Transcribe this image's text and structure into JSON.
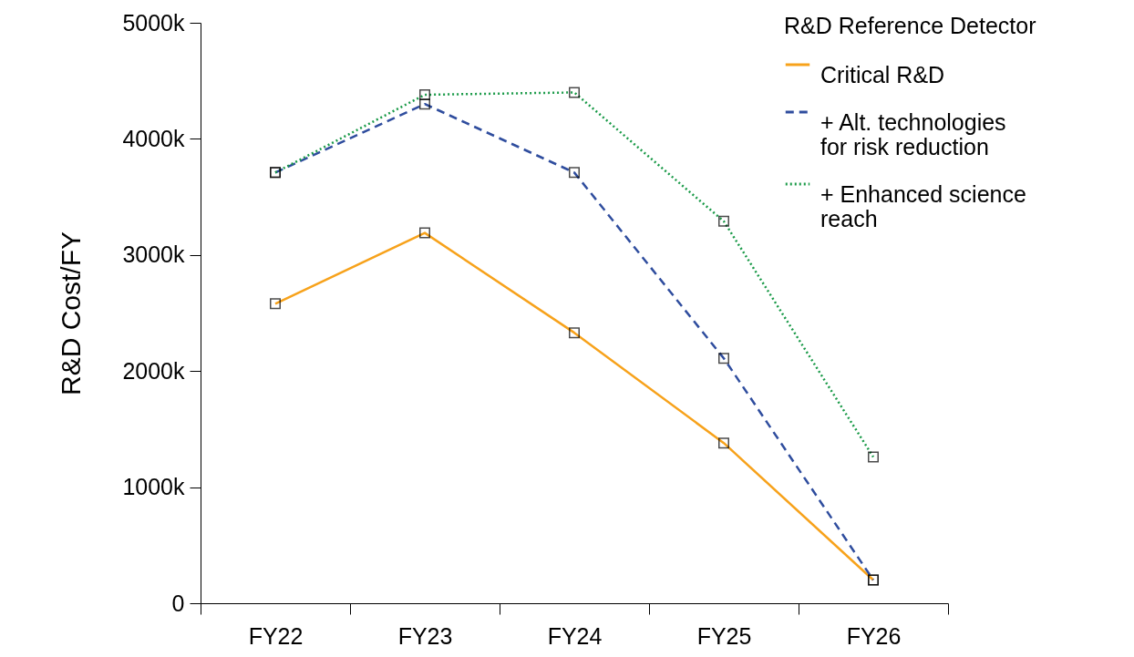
{
  "chart_data": {
    "type": "line",
    "ylabel": "R&D Cost/FY",
    "legend_title": "R&D Reference Detector",
    "categories": [
      "FY22",
      "FY23",
      "FY24",
      "FY25",
      "FY26"
    ],
    "series": [
      {
        "name": "Critical R&D",
        "color": "#f7a21b",
        "line_style": "solid",
        "values": [
          2580,
          3190,
          2330,
          1380,
          200
        ]
      },
      {
        "name": "+ Alt. technologies for risk reduction",
        "color": "#2f4d9e",
        "line_style": "dashed",
        "values": [
          3710,
          4300,
          3710,
          2110,
          200
        ]
      },
      {
        "name": "+ Enhanced science reach",
        "color": "#1a9a48",
        "line_style": "dotted",
        "values": [
          3710,
          4380,
          4400,
          3290,
          1260
        ]
      }
    ],
    "ylim": [
      0,
      5000
    ],
    "yticks": [
      {
        "value": 0,
        "label": "0"
      },
      {
        "value": 1000,
        "label": "1000k"
      },
      {
        "value": 2000,
        "label": "2000k"
      },
      {
        "value": 3000,
        "label": "3000k"
      },
      {
        "value": 4000,
        "label": "4000k"
      },
      {
        "value": 5000,
        "label": "5000k"
      }
    ],
    "marker": "square",
    "grid": false,
    "legend": "top right"
  }
}
